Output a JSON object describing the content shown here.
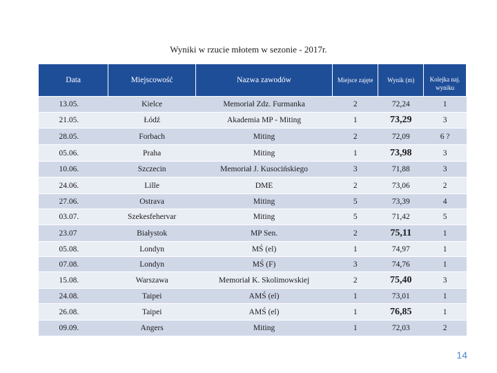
{
  "title": "Wyniki w rzucie młotem w sezonie - 2017r.",
  "headers": {
    "date": "Data",
    "place": "Miejscowość",
    "event": "Nazwa zawodów",
    "position": "Miejsce zajęte",
    "result": "Wynik (m)",
    "rank": "Kolejka naj. wyniku"
  },
  "rows": [
    {
      "date": "13.05.",
      "place": "Kielce",
      "event": "Memoriał  Zdz. Furmanka",
      "position": "2",
      "result": "72,24",
      "rank": "1",
      "highlight": false
    },
    {
      "date": "21.05.",
      "place": "Łódź",
      "event": "Akademia MP  -  Miting",
      "position": "1",
      "result": "73,29",
      "rank": "3",
      "highlight": true
    },
    {
      "date": "28.05.",
      "place": "Forbach",
      "event": "Miting",
      "position": "2",
      "result": "72,09",
      "rank": "6 ?",
      "highlight": false
    },
    {
      "date": "05.06.",
      "place": "Praha",
      "event": "Miting",
      "position": "1",
      "result": "73,98",
      "rank": "3",
      "highlight": true
    },
    {
      "date": "10.06.",
      "place": "Szczecin",
      "event": "Memoriał  J. Kusocińskiego",
      "position": "3",
      "result": "71,88",
      "rank": "3",
      "highlight": false
    },
    {
      "date": "24.06.",
      "place": "Lille",
      "event": "DME",
      "position": "2",
      "result": "73,06",
      "rank": "2",
      "highlight": false
    },
    {
      "date": "27.06.",
      "place": "Ostrava",
      "event": "Miting",
      "position": "5",
      "result": "73,39",
      "rank": "4",
      "highlight": false
    },
    {
      "date": "03.07.",
      "place": "Szekesfehervar",
      "event": "Miting",
      "position": "5",
      "result": "71,42",
      "rank": "5",
      "highlight": false
    },
    {
      "date": "23.07",
      "place": "Białystok",
      "event": "MP Sen.",
      "position": "2",
      "result": "75,11",
      "rank": "1",
      "highlight": true
    },
    {
      "date": "05.08.",
      "place": "Londyn",
      "event": "MŚ (el)",
      "position": "1",
      "result": "74,97",
      "rank": "1",
      "highlight": false
    },
    {
      "date": "07.08.",
      "place": "Londyn",
      "event": "MŚ (F)",
      "position": "3",
      "result": "74,76",
      "rank": "1",
      "highlight": false
    },
    {
      "date": "15.08.",
      "place": "Warszawa",
      "event": "Memoriał K. Skolimowskiej",
      "position": "2",
      "result": "75,40",
      "rank": "3",
      "highlight": true
    },
    {
      "date": "24.08.",
      "place": "Taipei",
      "event": "AMŚ (el)",
      "position": "1",
      "result": "73,01",
      "rank": "1",
      "highlight": false
    },
    {
      "date": "26.08.",
      "place": "Taipei",
      "event": "AMŚ (el)",
      "position": "1",
      "result": "76,85",
      "rank": "1",
      "highlight": true
    },
    {
      "date": "09.09.",
      "place": "Angers",
      "event": "Miting",
      "position": "1",
      "result": "72,03",
      "rank": "2",
      "highlight": false
    }
  ],
  "page_number": "14"
}
